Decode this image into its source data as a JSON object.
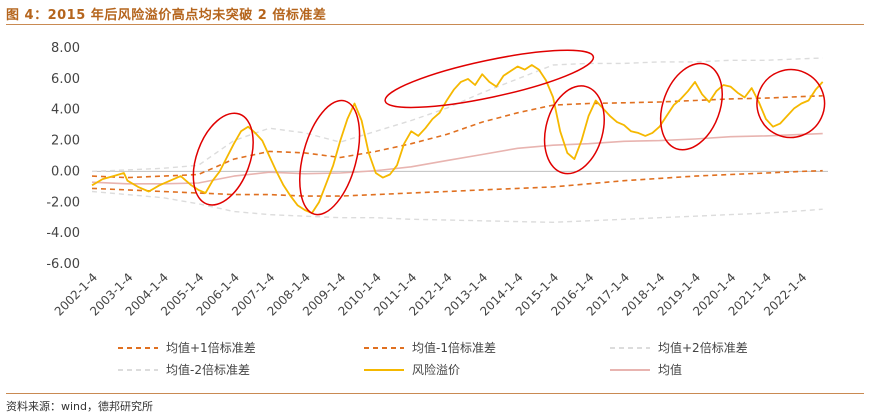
{
  "figure": {
    "title": "图 4：2015 年后风险溢价高点均未突破 2 倍标准差",
    "source": "资料来源：wind，德邦研究所"
  },
  "chart_data": {
    "type": "line",
    "title": "",
    "xlabel": "",
    "ylabel": "",
    "ylim": [
      -6.0,
      8.0
    ],
    "y_ticks": [
      "8.00",
      "6.00",
      "4.00",
      "2.00",
      "0.00",
      "-2.00",
      "-4.00",
      "-6.00"
    ],
    "x_tick_labels": [
      "2002-1-4",
      "2003-1-4",
      "2004-1-4",
      "2005-1-4",
      "2006-1-4",
      "2007-1-4",
      "2008-1-4",
      "2009-1-4",
      "2010-1-4",
      "2011-1-4",
      "2012-1-4",
      "2013-1-4",
      "2014-1-4",
      "2015-1-4",
      "2016-1-4",
      "2017-1-4",
      "2018-1-4",
      "2019-1-4",
      "2020-1-4",
      "2021-1-4",
      "2022-1-4"
    ],
    "grid": false,
    "legend_position": "bottom",
    "colors": {
      "risk_premium": "#f5b800",
      "mean": "#e8b4b0",
      "plus1": "#e07020",
      "minus1": "#e07020",
      "plus2": "#dcdcdc",
      "minus2": "#dcdcdc",
      "circle": "#e00000"
    },
    "series": [
      {
        "name": "风险溢价",
        "key": "risk_premium",
        "style": "solid",
        "points": [
          [
            2002.0,
            -0.9
          ],
          [
            2002.3,
            -0.5
          ],
          [
            2002.6,
            -0.3
          ],
          [
            2002.9,
            -0.1
          ],
          [
            2003.0,
            -0.6
          ],
          [
            2003.3,
            -1.0
          ],
          [
            2003.6,
            -1.3
          ],
          [
            2003.9,
            -0.9
          ],
          [
            2004.2,
            -0.6
          ],
          [
            2004.5,
            -0.3
          ],
          [
            2004.8,
            -0.9
          ],
          [
            2005.0,
            -1.2
          ],
          [
            2005.2,
            -1.4
          ],
          [
            2005.4,
            -0.6
          ],
          [
            2005.6,
            0.0
          ],
          [
            2005.8,
            0.9
          ],
          [
            2006.0,
            1.8
          ],
          [
            2006.2,
            2.6
          ],
          [
            2006.4,
            2.9
          ],
          [
            2006.6,
            2.5
          ],
          [
            2006.8,
            2.0
          ],
          [
            2007.0,
            1.0
          ],
          [
            2007.2,
            0.0
          ],
          [
            2007.4,
            -0.9
          ],
          [
            2007.6,
            -1.6
          ],
          [
            2007.8,
            -2.2
          ],
          [
            2008.0,
            -2.5
          ],
          [
            2008.2,
            -2.7
          ],
          [
            2008.4,
            -2.0
          ],
          [
            2008.6,
            -0.8
          ],
          [
            2008.8,
            0.4
          ],
          [
            2009.0,
            2.0
          ],
          [
            2009.2,
            3.4
          ],
          [
            2009.4,
            4.4
          ],
          [
            2009.6,
            3.3
          ],
          [
            2009.8,
            1.2
          ],
          [
            2010.0,
            -0.1
          ],
          [
            2010.2,
            -0.4
          ],
          [
            2010.4,
            -0.2
          ],
          [
            2010.6,
            0.4
          ],
          [
            2010.8,
            1.8
          ],
          [
            2011.0,
            2.6
          ],
          [
            2011.2,
            2.3
          ],
          [
            2011.4,
            2.8
          ],
          [
            2011.6,
            3.4
          ],
          [
            2011.8,
            3.8
          ],
          [
            2012.0,
            4.6
          ],
          [
            2012.2,
            5.3
          ],
          [
            2012.4,
            5.8
          ],
          [
            2012.6,
            6.0
          ],
          [
            2012.8,
            5.6
          ],
          [
            2013.0,
            6.3
          ],
          [
            2013.2,
            5.8
          ],
          [
            2013.4,
            5.5
          ],
          [
            2013.6,
            6.2
          ],
          [
            2013.8,
            6.5
          ],
          [
            2014.0,
            6.8
          ],
          [
            2014.2,
            6.6
          ],
          [
            2014.4,
            6.9
          ],
          [
            2014.6,
            6.6
          ],
          [
            2014.8,
            5.9
          ],
          [
            2015.0,
            4.8
          ],
          [
            2015.2,
            2.6
          ],
          [
            2015.4,
            1.2
          ],
          [
            2015.6,
            0.8
          ],
          [
            2015.8,
            2.0
          ],
          [
            2016.0,
            3.6
          ],
          [
            2016.2,
            4.6
          ],
          [
            2016.4,
            4.1
          ],
          [
            2016.6,
            3.6
          ],
          [
            2016.8,
            3.2
          ],
          [
            2017.0,
            3.0
          ],
          [
            2017.2,
            2.6
          ],
          [
            2017.4,
            2.5
          ],
          [
            2017.6,
            2.3
          ],
          [
            2017.8,
            2.5
          ],
          [
            2018.0,
            2.9
          ],
          [
            2018.2,
            3.6
          ],
          [
            2018.4,
            4.3
          ],
          [
            2018.6,
            4.7
          ],
          [
            2018.8,
            5.2
          ],
          [
            2019.0,
            5.8
          ],
          [
            2019.2,
            5.0
          ],
          [
            2019.4,
            4.5
          ],
          [
            2019.6,
            5.2
          ],
          [
            2019.8,
            5.6
          ],
          [
            2020.0,
            5.5
          ],
          [
            2020.2,
            5.1
          ],
          [
            2020.4,
            4.8
          ],
          [
            2020.6,
            5.4
          ],
          [
            2020.8,
            4.5
          ],
          [
            2021.0,
            3.4
          ],
          [
            2021.2,
            2.9
          ],
          [
            2021.4,
            3.1
          ],
          [
            2021.6,
            3.6
          ],
          [
            2021.8,
            4.1
          ],
          [
            2022.0,
            4.4
          ],
          [
            2022.2,
            4.6
          ],
          [
            2022.4,
            5.3
          ],
          [
            2022.6,
            5.8
          ]
        ]
      },
      {
        "name": "均值",
        "key": "mean",
        "style": "solid",
        "points": [
          [
            2002.0,
            -0.7
          ],
          [
            2003.0,
            -0.8
          ],
          [
            2004.0,
            -0.8
          ],
          [
            2005.0,
            -0.75
          ],
          [
            2006.0,
            -0.3
          ],
          [
            2007.0,
            -0.05
          ],
          [
            2008.0,
            -0.15
          ],
          [
            2009.0,
            -0.1
          ],
          [
            2010.0,
            0.05
          ],
          [
            2011.0,
            0.3
          ],
          [
            2012.0,
            0.7
          ],
          [
            2013.0,
            1.1
          ],
          [
            2014.0,
            1.5
          ],
          [
            2015.0,
            1.7
          ],
          [
            2016.0,
            1.8
          ],
          [
            2017.0,
            1.95
          ],
          [
            2018.0,
            2.0
          ],
          [
            2019.0,
            2.1
          ],
          [
            2020.0,
            2.25
          ],
          [
            2021.0,
            2.3
          ],
          [
            2022.0,
            2.4
          ],
          [
            2022.6,
            2.45
          ]
        ]
      },
      {
        "name": "均值+1倍标准差",
        "key": "plus1",
        "style": "dash",
        "points": [
          [
            2002.0,
            -0.3
          ],
          [
            2003.0,
            -0.4
          ],
          [
            2004.0,
            -0.3
          ],
          [
            2005.0,
            -0.2
          ],
          [
            2006.0,
            0.8
          ],
          [
            2007.0,
            1.3
          ],
          [
            2008.0,
            1.2
          ],
          [
            2009.0,
            0.9
          ],
          [
            2010.0,
            1.3
          ],
          [
            2011.0,
            1.8
          ],
          [
            2012.0,
            2.4
          ],
          [
            2013.0,
            3.2
          ],
          [
            2014.0,
            3.8
          ],
          [
            2015.0,
            4.3
          ],
          [
            2016.0,
            4.4
          ],
          [
            2017.0,
            4.45
          ],
          [
            2018.0,
            4.5
          ],
          [
            2019.0,
            4.6
          ],
          [
            2020.0,
            4.7
          ],
          [
            2021.0,
            4.75
          ],
          [
            2022.0,
            4.85
          ],
          [
            2022.6,
            4.9
          ]
        ]
      },
      {
        "name": "均值-1倍标准差",
        "key": "minus1",
        "style": "dash",
        "points": [
          [
            2002.0,
            -1.1
          ],
          [
            2003.0,
            -1.2
          ],
          [
            2004.0,
            -1.3
          ],
          [
            2005.0,
            -1.4
          ],
          [
            2006.0,
            -1.5
          ],
          [
            2007.0,
            -1.5
          ],
          [
            2008.0,
            -1.6
          ],
          [
            2009.0,
            -1.6
          ],
          [
            2010.0,
            -1.5
          ],
          [
            2011.0,
            -1.4
          ],
          [
            2012.0,
            -1.3
          ],
          [
            2013.0,
            -1.2
          ],
          [
            2014.0,
            -1.1
          ],
          [
            2015.0,
            -1.0
          ],
          [
            2016.0,
            -0.8
          ],
          [
            2017.0,
            -0.6
          ],
          [
            2018.0,
            -0.45
          ],
          [
            2019.0,
            -0.3
          ],
          [
            2020.0,
            -0.2
          ],
          [
            2021.0,
            -0.1
          ],
          [
            2022.0,
            0.0
          ],
          [
            2022.6,
            0.05
          ]
        ]
      },
      {
        "name": "均值+2倍标准差",
        "key": "plus2",
        "style": "dash",
        "points": [
          [
            2002.0,
            0.0
          ],
          [
            2003.0,
            0.1
          ],
          [
            2004.0,
            0.2
          ],
          [
            2005.0,
            0.4
          ],
          [
            2006.0,
            2.0
          ],
          [
            2007.0,
            2.8
          ],
          [
            2008.0,
            2.5
          ],
          [
            2009.0,
            1.9
          ],
          [
            2010.0,
            2.6
          ],
          [
            2011.0,
            3.3
          ],
          [
            2012.0,
            4.1
          ],
          [
            2013.0,
            5.1
          ],
          [
            2014.0,
            6.0
          ],
          [
            2015.0,
            6.9
          ],
          [
            2016.0,
            7.0
          ],
          [
            2017.0,
            7.0
          ],
          [
            2018.0,
            7.1
          ],
          [
            2019.0,
            7.1
          ],
          [
            2020.0,
            7.2
          ],
          [
            2021.0,
            7.2
          ],
          [
            2022.0,
            7.3
          ],
          [
            2022.6,
            7.35
          ]
        ]
      },
      {
        "name": "均值-2倍标准差",
        "key": "minus2",
        "style": "dash",
        "points": [
          [
            2002.0,
            -1.3
          ],
          [
            2003.0,
            -1.5
          ],
          [
            2004.0,
            -1.7
          ],
          [
            2005.0,
            -2.1
          ],
          [
            2006.0,
            -2.6
          ],
          [
            2007.0,
            -2.8
          ],
          [
            2008.0,
            -2.9
          ],
          [
            2009.0,
            -3.0
          ],
          [
            2010.0,
            -3.0
          ],
          [
            2011.0,
            -3.1
          ],
          [
            2012.0,
            -3.15
          ],
          [
            2013.0,
            -3.2
          ],
          [
            2014.0,
            -3.25
          ],
          [
            2015.0,
            -3.3
          ],
          [
            2016.0,
            -3.2
          ],
          [
            2017.0,
            -3.1
          ],
          [
            2018.0,
            -3.0
          ],
          [
            2019.0,
            -2.9
          ],
          [
            2020.0,
            -2.8
          ],
          [
            2021.0,
            -2.7
          ],
          [
            2022.0,
            -2.55
          ],
          [
            2022.6,
            -2.45
          ]
        ]
      }
    ],
    "annotations": [
      {
        "shape": "ellipse",
        "cx": 2005.7,
        "cy": 0.8,
        "rx": 0.75,
        "ry": 3.1,
        "rotate": 20
      },
      {
        "shape": "ellipse",
        "cx": 2008.7,
        "cy": 0.9,
        "rx": 0.75,
        "ry": 3.8,
        "rotate": 15
      },
      {
        "shape": "ellipse",
        "cx": 2013.2,
        "cy": 6.0,
        "rx": 3.0,
        "ry": 1.2,
        "rotate": -12
      },
      {
        "shape": "ellipse",
        "cx": 2015.6,
        "cy": 2.7,
        "rx": 0.8,
        "ry": 2.9,
        "rotate": 15
      },
      {
        "shape": "ellipse",
        "cx": 2018.9,
        "cy": 4.2,
        "rx": 0.8,
        "ry": 2.9,
        "rotate": 20
      },
      {
        "shape": "ellipse",
        "cx": 2021.7,
        "cy": 4.4,
        "rx": 0.95,
        "ry": 2.2,
        "rotate": 25
      }
    ],
    "legend": [
      {
        "label": "均值+1倍标准差",
        "key": "plus1",
        "style": "dash"
      },
      {
        "label": "均值-1倍标准差",
        "key": "minus1",
        "style": "dash"
      },
      {
        "label": "均值+2倍标准差",
        "key": "plus2",
        "style": "dash"
      },
      {
        "label": "均值-2倍标准差",
        "key": "minus2",
        "style": "dash"
      },
      {
        "label": "风险溢价",
        "key": "risk_premium",
        "style": "solid"
      },
      {
        "label": "均值",
        "key": "mean",
        "style": "solid"
      }
    ]
  }
}
